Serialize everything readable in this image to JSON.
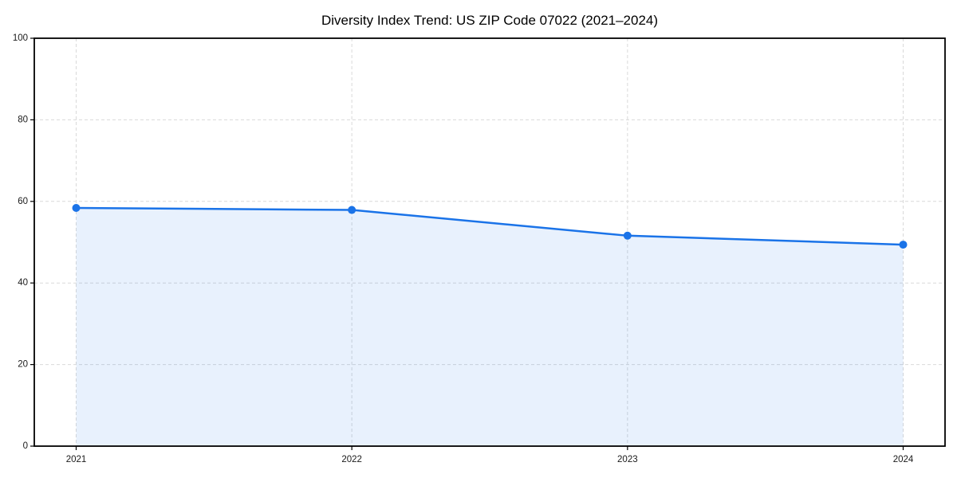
{
  "chart_data": {
    "type": "area",
    "title": "Diversity Index Trend: US ZIP Code 07022 (2021–2024)",
    "categories": [
      "2021",
      "2022",
      "2023",
      "2024"
    ],
    "series": [
      {
        "name": "Diversity Index",
        "values": [
          58.4,
          57.9,
          51.6,
          49.4
        ]
      }
    ],
    "xlabel": "",
    "ylabel": "",
    "ylim": [
      0,
      100
    ],
    "yticks": [
      0,
      20,
      40,
      60,
      80,
      100
    ],
    "grid": true,
    "grid_style": "dashed",
    "legend": "none",
    "marker": "circle",
    "colors": {
      "line": "#1a73e8",
      "fill": "#1a73e8",
      "fill_opacity": 0.1,
      "grid": "#d9d9d9",
      "axis": "#000000",
      "text": "#000000",
      "background": "#ffffff"
    }
  }
}
